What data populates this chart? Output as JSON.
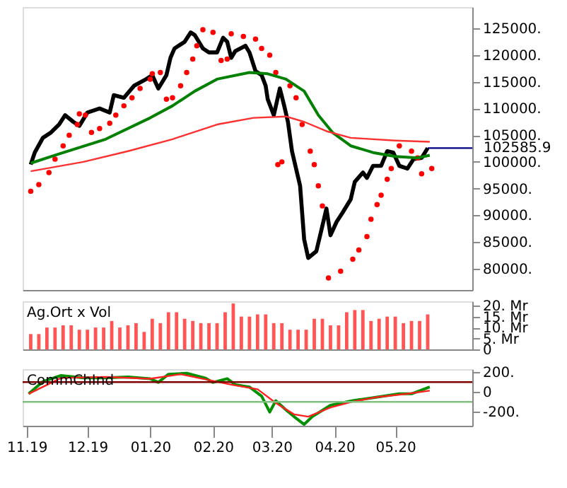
{
  "chart_data": [
    {
      "type": "line",
      "xlim": [
        "2019-10-30",
        "2020-06-08"
      ],
      "ylim": [
        76000,
        129000
      ],
      "tick_labels": "y",
      "yticks": [
        {
          "value": 80000,
          "label": "80000."
        },
        {
          "value": 85000,
          "label": "85000."
        },
        {
          "value": 90000,
          "label": "90000."
        },
        {
          "value": 95000,
          "label": "95000."
        },
        {
          "value": 100000,
          "label": "100000."
        },
        {
          "value": 105000,
          "label": "105000."
        },
        {
          "value": 110000,
          "label": "110000."
        },
        {
          "value": 115000,
          "label": "115000."
        },
        {
          "value": 120000,
          "label": "120000."
        },
        {
          "value": 125000,
          "label": "125000."
        }
      ],
      "ref_lines": [
        {
          "axis": "y",
          "value": 102585.9,
          "label": "102585.9",
          "color": "#000080"
        }
      ],
      "series": [
        {
          "color": "#000000",
          "x": [
            "2019-11-03",
            "2019-11-05",
            "2019-11-09",
            "2019-11-13",
            "2019-11-17",
            "2019-11-20",
            "2019-11-24",
            "2019-11-27",
            "2019-12-01",
            "2019-12-07",
            "2019-12-12",
            "2019-12-14",
            "2019-12-19",
            "2019-12-24",
            "2019-12-30",
            "2020-01-02",
            "2020-01-05",
            "2020-01-09",
            "2020-01-11",
            "2020-01-13",
            "2020-01-18",
            "2020-01-21",
            "2020-01-23",
            "2020-01-27",
            "2020-01-30",
            "2020-02-03",
            "2020-02-06",
            "2020-02-08",
            "2020-02-10",
            "2020-02-12",
            "2020-02-17",
            "2020-02-19",
            "2020-02-22",
            "2020-02-25",
            "2020-02-27",
            "2020-02-28",
            "2020-03-02",
            "2020-03-05",
            "2020-03-07",
            "2020-03-09",
            "2020-03-11",
            "2020-03-15",
            "2020-03-17",
            "2020-03-19",
            "2020-03-23",
            "2020-03-26",
            "2020-03-28",
            "2020-03-30",
            "2020-04-02",
            "2020-04-05",
            "2020-04-09",
            "2020-04-11",
            "2020-04-15",
            "2020-04-17",
            "2020-04-20",
            "2020-04-24",
            "2020-04-27",
            "2020-04-30",
            "2020-05-03",
            "2020-05-07",
            "2020-05-10",
            "2020-05-14",
            "2020-05-17"
          ],
          "values": [
            99500,
            101750,
            104500,
            105500,
            107000,
            108750,
            107500,
            106750,
            109250,
            110000,
            109250,
            112500,
            112000,
            114250,
            115500,
            116250,
            113750,
            116250,
            119500,
            121250,
            122500,
            124250,
            123750,
            121250,
            120500,
            120500,
            123250,
            122500,
            119500,
            120750,
            121750,
            120500,
            117000,
            116250,
            114250,
            111750,
            108750,
            113750,
            110750,
            107500,
            102000,
            95500,
            85500,
            82000,
            83250,
            88000,
            91250,
            86250,
            88750,
            90500,
            93000,
            96250,
            98000,
            97000,
            99250,
            99250,
            102000,
            101750,
            99250,
            98750,
            100500,
            100750,
            102585.9
          ]
        },
        {
          "type": "scatter",
          "color": "#ff0000",
          "marker": "circle",
          "x": [
            "2019-11-03",
            "2019-11-07",
            "2019-11-12",
            "2019-11-15",
            "2019-11-19",
            "2019-11-22",
            "2019-11-26",
            "2019-11-27",
            "2019-11-30",
            "2019-12-03",
            "2019-12-07",
            "2019-12-12",
            "2019-12-15",
            "2019-12-19",
            "2019-12-23",
            "2019-12-27",
            "2020-01-01",
            "2020-01-02",
            "2020-01-06",
            "2020-01-09",
            "2020-01-12",
            "2020-01-16",
            "2020-01-19",
            "2020-01-22",
            "2020-01-24",
            "2020-01-27",
            "2020-02-01",
            "2020-02-05",
            "2020-02-08",
            "2020-02-10",
            "2020-02-16",
            "2020-02-22",
            "2020-02-25",
            "2020-02-29",
            "2020-03-03",
            "2020-03-04",
            "2020-03-06",
            "2020-03-10",
            "2020-03-13",
            "2020-03-16",
            "2020-03-20",
            "2020-03-22",
            "2020-03-24",
            "2020-03-26",
            "2020-03-29",
            "2020-04-04",
            "2020-04-10",
            "2020-04-13",
            "2020-04-17",
            "2020-04-19",
            "2020-04-22",
            "2020-04-24",
            "2020-04-27",
            "2020-04-29",
            "2020-05-03",
            "2020-05-09",
            "2020-05-12",
            "2020-05-14",
            "2020-05-19"
          ],
          "values": [
            94500,
            95750,
            98000,
            100500,
            103000,
            105000,
            107000,
            109000,
            108750,
            105500,
            106250,
            107250,
            108750,
            110500,
            112000,
            113750,
            115500,
            116500,
            116750,
            111750,
            112000,
            114250,
            116750,
            119250,
            121750,
            124750,
            124250,
            119000,
            119250,
            124000,
            123500,
            123000,
            121250,
            120000,
            116750,
            99500,
            100000,
            114250,
            112000,
            107000,
            102000,
            99500,
            95500,
            91750,
            78250,
            79500,
            81750,
            83500,
            86000,
            89250,
            92000,
            93750,
            96750,
            98750,
            103000,
            102000,
            100750,
            97750,
            98750
          ]
        },
        {
          "color": "#008000",
          "x": [
            "2019-11-03",
            "2019-11-17",
            "2019-12-10",
            "2020-01-01",
            "2020-01-12",
            "2020-01-23",
            "2020-02-03",
            "2020-02-19",
            "2020-02-28",
            "2020-03-08",
            "2020-03-17",
            "2020-03-24",
            "2020-03-31",
            "2020-04-09",
            "2020-04-20",
            "2020-05-01",
            "2020-05-12",
            "2020-05-18"
          ],
          "values": [
            99750,
            101500,
            104250,
            108250,
            110500,
            113250,
            115500,
            116750,
            116500,
            115500,
            113250,
            108750,
            105500,
            103000,
            101750,
            101000,
            100750,
            101250
          ]
        },
        {
          "color": "#ff3030",
          "x": [
            "2019-11-03",
            "2019-11-29",
            "2019-12-21",
            "2020-01-12",
            "2020-02-03",
            "2020-02-21",
            "2020-03-08",
            "2020-03-17",
            "2020-03-28",
            "2020-04-09",
            "2020-05-01",
            "2020-05-18"
          ],
          "values": [
            98250,
            100000,
            102000,
            104250,
            107000,
            108250,
            108500,
            107500,
            105750,
            104500,
            104000,
            103750
          ]
        }
      ]
    },
    {
      "type": "bar",
      "xlim": [
        "2019-10-30",
        "2020-06-08"
      ],
      "ylim": [
        0,
        22
      ],
      "tick_labels": "y",
      "annotations": [
        "Ag.Ort x Vol"
      ],
      "yticks": [
        0,
        {
          "value": 5,
          "label": "5. Mr"
        },
        {
          "value": 10,
          "label": "10. Mr"
        },
        {
          "value": 15,
          "label": "15. Mr"
        },
        {
          "value": 20,
          "label": "20. Mr"
        }
      ],
      "series": [
        {
          "color": "#ff5555",
          "x": [
            "2019-11-03",
            "2019-11-07",
            "2019-11-11",
            "2019-11-15",
            "2019-11-19",
            "2019-11-23",
            "2019-11-27",
            "2019-12-01",
            "2019-12-05",
            "2019-12-09",
            "2019-12-13",
            "2019-12-17",
            "2019-12-21",
            "2019-12-25",
            "2019-12-29",
            "2020-01-02",
            "2020-01-06",
            "2020-01-10",
            "2020-01-14",
            "2020-01-18",
            "2020-01-22",
            "2020-01-26",
            "2020-01-30",
            "2020-02-03",
            "2020-02-07",
            "2020-02-11",
            "2020-02-15",
            "2020-02-19",
            "2020-02-23",
            "2020-02-27",
            "2020-03-02",
            "2020-03-06",
            "2020-03-10",
            "2020-03-14",
            "2020-03-18",
            "2020-03-22",
            "2020-03-26",
            "2020-03-30",
            "2020-04-03",
            "2020-04-07",
            "2020-04-11",
            "2020-04-15",
            "2020-04-19",
            "2020-04-23",
            "2020-04-27",
            "2020-05-01",
            "2020-05-05",
            "2020-05-09",
            "2020-05-13",
            "2020-05-17"
          ],
          "values": [
            7,
            7,
            10,
            10,
            11,
            11,
            9,
            9,
            10,
            10,
            13,
            10,
            11,
            12,
            8,
            14,
            12,
            17,
            17,
            14,
            13,
            12,
            12,
            12,
            17,
            21,
            15,
            15,
            16,
            16,
            12,
            12,
            9,
            9,
            9,
            14,
            14,
            11,
            11,
            17,
            18,
            18,
            13,
            14,
            15,
            15,
            12,
            13,
            13,
            16
          ]
        }
      ]
    },
    {
      "type": "line",
      "xlim": [
        "2019-10-30",
        "2020-06-08"
      ],
      "ylim": [
        -340,
        230
      ],
      "annotations": [
        "CommChInd"
      ],
      "yticks": [
        {
          "value": -200,
          "label": "-200."
        },
        0,
        {
          "value": 200,
          "label": "200."
        }
      ],
      "xticks": [
        {
          "value": "2019-11-01",
          "label": "11.19"
        },
        {
          "value": "2019-12-01",
          "label": "12.19"
        },
        {
          "value": "2020-01-01",
          "label": "01.20"
        },
        {
          "value": "2020-02-01",
          "label": "02.20"
        },
        {
          "value": "2020-03-01",
          "label": "03.20"
        },
        {
          "value": "2020-04-01",
          "label": "04.20"
        },
        {
          "value": "2020-05-01",
          "label": "05.20"
        }
      ],
      "ref_lines": [
        {
          "axis": "y",
          "value": 100,
          "color": "#800000"
        },
        {
          "axis": "y",
          "value": -100,
          "color": "#80c080"
        }
      ],
      "series": [
        {
          "color": "#009000",
          "x": [
            "2019-11-02",
            "2019-11-09",
            "2019-11-18",
            "2019-11-29",
            "2019-12-10",
            "2019-12-21",
            "2020-01-01",
            "2020-01-05",
            "2020-01-10",
            "2020-01-19",
            "2020-01-28",
            "2020-02-01",
            "2020-02-08",
            "2020-02-12",
            "2020-02-19",
            "2020-02-25",
            "2020-02-29",
            "2020-03-03",
            "2020-03-08",
            "2020-03-12",
            "2020-03-17",
            "2020-03-21",
            "2020-03-30",
            "2020-04-10",
            "2020-04-22",
            "2020-05-03",
            "2020-05-09",
            "2020-05-18"
          ],
          "values": [
            -18,
            106,
            166,
            142,
            142,
            152,
            134,
            97,
            179,
            189,
            142,
            97,
            134,
            74,
            51,
            -41,
            -202,
            -87,
            -179,
            -248,
            -326,
            -248,
            -133,
            -87,
            -51,
            -18,
            -18,
            51
          ]
        },
        {
          "color": "#ff2020",
          "x": [
            "2019-11-02",
            "2019-11-18",
            "2019-12-10",
            "2020-01-01",
            "2020-01-16",
            "2020-01-30",
            "2020-02-10",
            "2020-02-23",
            "2020-03-03",
            "2020-03-12",
            "2020-03-19",
            "2020-03-30",
            "2020-04-10",
            "2020-04-22",
            "2020-05-07",
            "2020-05-18"
          ],
          "values": [
            -18,
            142,
            152,
            134,
            179,
            120,
            74,
            28,
            -110,
            -225,
            -248,
            -156,
            -97,
            -51,
            -18,
            14
          ]
        }
      ]
    }
  ]
}
